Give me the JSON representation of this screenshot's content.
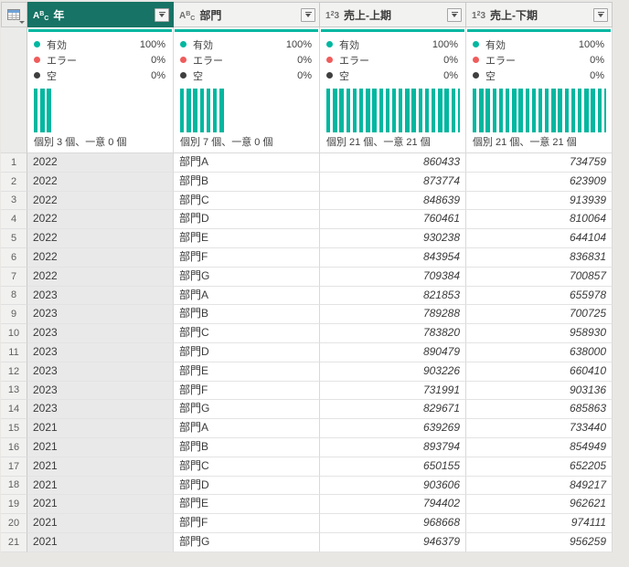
{
  "colors": {
    "accent_teal": "#00b7a0",
    "selected_header": "#177365",
    "error_red": "#f05c5c",
    "empty_gray": "#3f3f3f",
    "pane_bg": "#e9e7e4"
  },
  "table": {
    "quality_labels": {
      "valid": "有効",
      "error": "エラー",
      "empty": "空"
    },
    "columns": [
      {
        "name": "年",
        "type": "text",
        "type_icon": "ABC",
        "selected": true,
        "valid_pct": "100%",
        "error_pct": "0%",
        "empty_pct": "0%",
        "histogram_bars": 3,
        "distinct_text": "個別 3 個、一意 0 個"
      },
      {
        "name": "部門",
        "type": "text",
        "type_icon": "ABC",
        "selected": false,
        "valid_pct": "100%",
        "error_pct": "0%",
        "empty_pct": "0%",
        "histogram_bars": 7,
        "distinct_text": "個別 7 個、一意 0 個"
      },
      {
        "name": "売上-上期",
        "type": "number",
        "type_icon": "123",
        "selected": false,
        "valid_pct": "100%",
        "error_pct": "0%",
        "empty_pct": "0%",
        "histogram_bars": 21,
        "distinct_text": "個別 21 個、一意 21 個"
      },
      {
        "name": "売上-下期",
        "type": "number",
        "type_icon": "123",
        "selected": false,
        "valid_pct": "100%",
        "error_pct": "0%",
        "empty_pct": "0%",
        "histogram_bars": 21,
        "distinct_text": "個別 21 個、一意 21 個"
      }
    ],
    "rows": [
      [
        "2022",
        "部門A",
        "860433",
        "734759"
      ],
      [
        "2022",
        "部門B",
        "873774",
        "623909"
      ],
      [
        "2022",
        "部門C",
        "848639",
        "913939"
      ],
      [
        "2022",
        "部門D",
        "760461",
        "810064"
      ],
      [
        "2022",
        "部門E",
        "930238",
        "644104"
      ],
      [
        "2022",
        "部門F",
        "843954",
        "836831"
      ],
      [
        "2022",
        "部門G",
        "709384",
        "700857"
      ],
      [
        "2023",
        "部門A",
        "821853",
        "655978"
      ],
      [
        "2023",
        "部門B",
        "789288",
        "700725"
      ],
      [
        "2023",
        "部門C",
        "783820",
        "958930"
      ],
      [
        "2023",
        "部門D",
        "890479",
        "638000"
      ],
      [
        "2023",
        "部門E",
        "903226",
        "660410"
      ],
      [
        "2023",
        "部門F",
        "731991",
        "903136"
      ],
      [
        "2023",
        "部門G",
        "829671",
        "685863"
      ],
      [
        "2021",
        "部門A",
        "639269",
        "733440"
      ],
      [
        "2021",
        "部門B",
        "893794",
        "854949"
      ],
      [
        "2021",
        "部門C",
        "650155",
        "652205"
      ],
      [
        "2021",
        "部門D",
        "903606",
        "849217"
      ],
      [
        "2021",
        "部門E",
        "794402",
        "962621"
      ],
      [
        "2021",
        "部門F",
        "968668",
        "974111"
      ],
      [
        "2021",
        "部門G",
        "946379",
        "956259"
      ]
    ]
  }
}
